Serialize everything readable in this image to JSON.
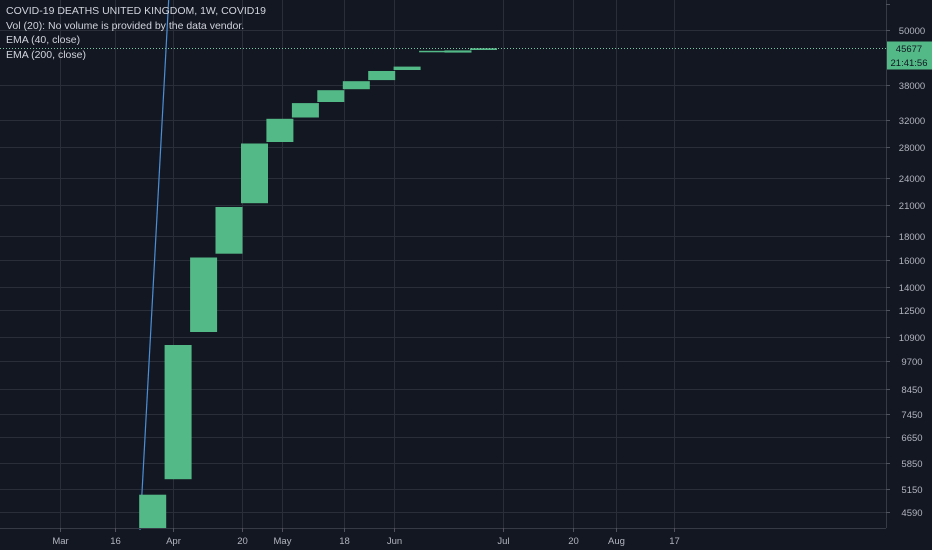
{
  "legend": {
    "title": "COVID-19 DEATHS UNITED KINGDOM, 1W, COVID19",
    "vol": "Vol (20): No volume is provided by the data vendor.",
    "ema40": "EMA (40, close)",
    "ema200": "EMA (200, close)"
  },
  "price_badge": {
    "value": "45677",
    "countdown": "21:41:56"
  },
  "colors": {
    "background": "#131722",
    "grid": "#2a2e39",
    "up_candle": "#53b987",
    "ema_line": "#4c8fd6",
    "axis_text": "#b2b5be",
    "badge": "#53b987"
  },
  "chart_data": {
    "type": "candlestick",
    "title": "COVID-19 DEATHS UNITED KINGDOM, 1W, COVID19",
    "timeframe": "1W",
    "y_scale": "log",
    "y_ticks": [
      4590,
      5150,
      5850,
      6650,
      7450,
      8450,
      9700,
      10900,
      12500,
      14000,
      16000,
      18000,
      21000,
      24000,
      28000,
      32000,
      38000,
      50000
    ],
    "x_ticks": [
      {
        "label": "Mar",
        "date": "2020-03-01"
      },
      {
        "label": "16",
        "date": "2020-03-16"
      },
      {
        "label": "Apr",
        "date": "2020-04-01"
      },
      {
        "label": "20",
        "date": "2020-04-20"
      },
      {
        "label": "May",
        "date": "2020-05-01"
      },
      {
        "label": "18",
        "date": "2020-05-18"
      },
      {
        "label": "Jun",
        "date": "2020-06-01"
      },
      {
        "label": "Jul",
        "date": "2020-07-01"
      },
      {
        "label": "20",
        "date": "2020-07-20"
      },
      {
        "label": "Aug",
        "date": "2020-08-01"
      },
      {
        "label": "17",
        "date": "2020-08-17"
      }
    ],
    "candles": [
      {
        "date": "2020-03-23",
        "open": 4200,
        "close": 5000
      },
      {
        "date": "2020-03-30",
        "open": 5400,
        "close": 10500
      },
      {
        "date": "2020-04-06",
        "open": 11200,
        "close": 16200
      },
      {
        "date": "2020-04-13",
        "open": 16500,
        "close": 20800
      },
      {
        "date": "2020-04-20",
        "open": 21200,
        "close": 28500
      },
      {
        "date": "2020-04-27",
        "open": 28700,
        "close": 32200
      },
      {
        "date": "2020-05-04",
        "open": 32400,
        "close": 34800
      },
      {
        "date": "2020-05-11",
        "open": 35000,
        "close": 37100
      },
      {
        "date": "2020-05-18",
        "open": 37300,
        "close": 38800
      },
      {
        "date": "2020-05-25",
        "open": 39000,
        "close": 40800
      },
      {
        "date": "2020-06-01",
        "open": 41000,
        "close": 41700
      },
      {
        "date": "2020-06-08",
        "open": 44900,
        "close": 45100
      },
      {
        "date": "2020-06-15",
        "open": 44700,
        "close": 45200
      },
      {
        "date": "2020-06-22",
        "open": 45300,
        "close": 45677
      }
    ],
    "ema_line": [
      {
        "date": "2020-03-23",
        "value": 4200
      },
      {
        "date": "2020-03-31",
        "value": 60000
      }
    ],
    "last_price": 45677,
    "grid": true
  }
}
